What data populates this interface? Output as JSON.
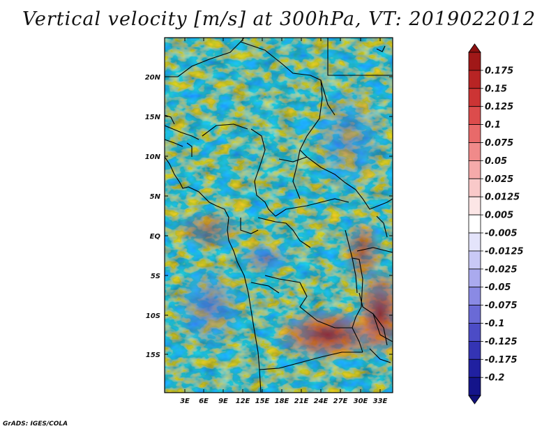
{
  "title": "Vertical velocity [m/s] at 300hPa, VT: 2019022012",
  "credit": "GrADS: IGES/COLA",
  "map": {
    "lat_labels": [
      "20N",
      "15N",
      "10N",
      "5N",
      "EQ",
      "5S",
      "10S",
      "15S"
    ],
    "lon_labels": [
      "3E",
      "6E",
      "9E",
      "12E",
      "15E",
      "18E",
      "21E",
      "24E",
      "27E",
      "30E",
      "33E"
    ],
    "field_palette": {
      "negative_strong": "#2a2ab5",
      "negative_mid": "#7a7ae6",
      "negative_weak": "#c4c4f6",
      "neutral": "#ffffff",
      "positive_weak": "#f7c8c8",
      "positive_mid": "#e07575",
      "positive_strong": "#b52222"
    }
  },
  "colorbar": {
    "labels": [
      "0.175",
      "0.15",
      "0.125",
      "0.1",
      "0.075",
      "0.05",
      "0.025",
      "0.0125",
      "0.005",
      "-0.005",
      "-0.0125",
      "-0.025",
      "-0.05",
      "-0.075",
      "-0.1",
      "-0.125",
      "-0.175",
      "-0.2"
    ],
    "colors": [
      "#a01818",
      "#b82424",
      "#cc3434",
      "#dc4c4c",
      "#e86a6a",
      "#f08a8a",
      "#f5aaaa",
      "#f9c9c9",
      "#fce6e6",
      "#ffffff",
      "#e4e4fb",
      "#c9c9f6",
      "#aaaaee",
      "#8a8ae4",
      "#6a6ad6",
      "#4c4cc6",
      "#3434b4",
      "#2020a0",
      "#14148a"
    ],
    "top_arrow_color": "#8c1010",
    "bottom_arrow_color": "#10107a"
  }
}
